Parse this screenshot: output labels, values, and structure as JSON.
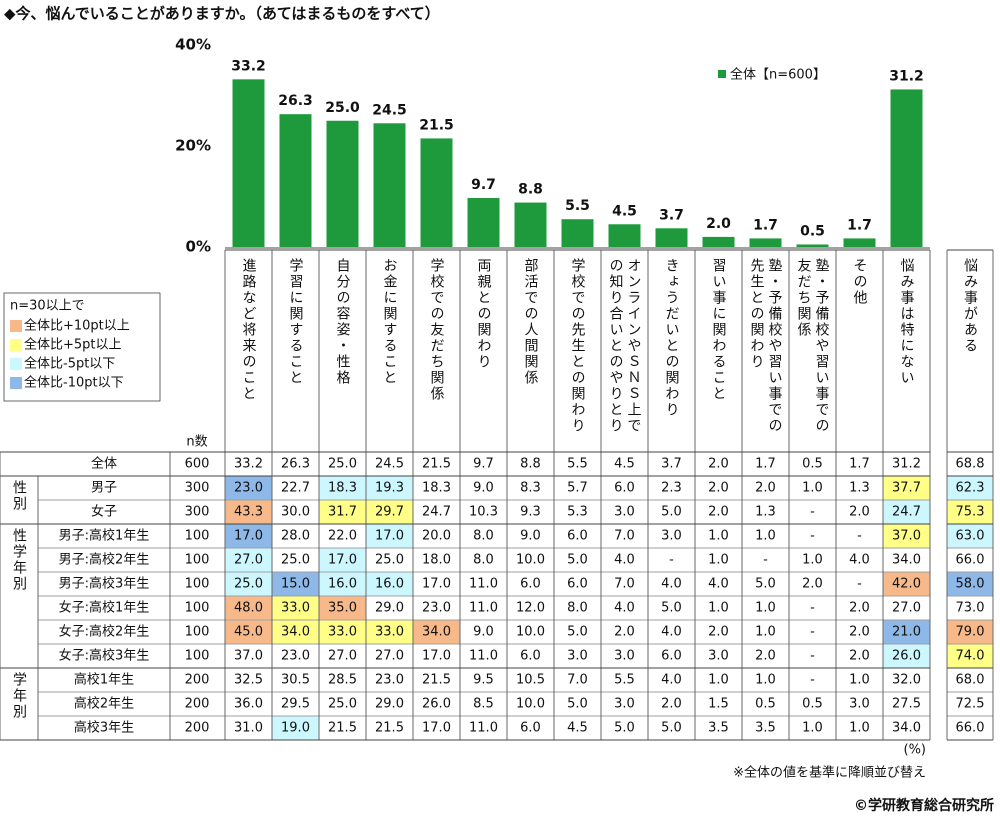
{
  "chart_data": {
    "type": "bar",
    "title": "◆今、悩んでいることがありますか。（あてはまるものをすべて）",
    "categories": [
      "進路など将来のこと",
      "学習に関すること",
      "自分の容姿・性格",
      "お金に関すること",
      "学校での友だち関係",
      "両親との関わり",
      "部活での人間関係",
      "学校での先生との関わり",
      "オンラインやＳＮＳ上での知り合いとのやりとり",
      "きょうだいとの関わり",
      "習い事に関わること",
      "塾・予備校や習い事での先生との関わり",
      "塾・予備校や習い事での友だち関係",
      "その他",
      "悩み事は特にない"
    ],
    "series": [
      {
        "name": "全体【n=600】",
        "color": "#1e9a3c",
        "values": [
          33.2,
          26.3,
          25.0,
          24.5,
          21.5,
          9.7,
          8.8,
          5.5,
          4.5,
          3.7,
          2.0,
          1.7,
          0.5,
          1.7,
          31.2
        ],
        "value_labels": [
          "33.2",
          "26.3",
          "25.0",
          "24.5",
          "21.5",
          "9.7",
          "8.8",
          "5.5",
          "4.5",
          "3.7",
          "2.0",
          "1.7",
          "0.5",
          "1.7",
          "31.2"
        ]
      }
    ],
    "ylim": [
      0,
      40
    ],
    "yticks": [
      {
        "value": 0,
        "label": "0%"
      },
      {
        "value": 20,
        "label": "20%"
      },
      {
        "value": 40,
        "label": "40%"
      }
    ],
    "legend": "upper right"
  },
  "table": {
    "n_header": "n数",
    "extra_header": "悩み事がある",
    "legend": {
      "title": "n=30以上で",
      "items": [
        {
          "label": "全体比+10pt以上",
          "color": "#f8b98a"
        },
        {
          "label": "全体比+5pt以上",
          "color": "#ffff88"
        },
        {
          "label": "全体比-5pt以下",
          "color": "#ccf7ff"
        },
        {
          "label": "全体比-10pt以下",
          "color": "#8db8e8"
        }
      ]
    },
    "total": {
      "label": "全体",
      "n": 600,
      "cells": [
        "33.2",
        "26.3",
        "25.0",
        "24.5",
        "21.5",
        "9.7",
        "8.8",
        "5.5",
        "4.5",
        "3.7",
        "2.0",
        "1.7",
        "0.5",
        "1.7",
        "31.2",
        "68.8"
      ]
    },
    "groups": [
      {
        "label": "性別",
        "rows": [
          {
            "label": "男子",
            "n": 300,
            "cells": [
              "23.0",
              "22.7",
              "18.3",
              "19.3",
              "18.3",
              "9.0",
              "8.3",
              "5.7",
              "6.0",
              "2.3",
              "2.0",
              "2.0",
              "1.0",
              "1.3",
              "37.7",
              "62.3"
            ],
            "fills": [
              "#8db8e8",
              null,
              "#ccf7ff",
              "#ccf7ff",
              null,
              null,
              null,
              null,
              null,
              null,
              null,
              null,
              null,
              null,
              "#ffff88",
              "#ccf7ff"
            ]
          },
          {
            "label": "女子",
            "n": 300,
            "cells": [
              "43.3",
              "30.0",
              "31.7",
              "29.7",
              "24.7",
              "10.3",
              "9.3",
              "5.3",
              "3.0",
              "5.0",
              "2.0",
              "1.3",
              "-",
              "2.0",
              "24.7",
              "75.3"
            ],
            "fills": [
              "#f8b98a",
              null,
              "#ffff88",
              "#ffff88",
              null,
              null,
              null,
              null,
              null,
              null,
              null,
              null,
              null,
              null,
              "#ccf7ff",
              "#ffff88"
            ]
          }
        ]
      },
      {
        "label": "性学年別",
        "rows": [
          {
            "label": "男子:高校1年生",
            "n": 100,
            "cells": [
              "17.0",
              "28.0",
              "22.0",
              "17.0",
              "20.0",
              "8.0",
              "9.0",
              "6.0",
              "7.0",
              "3.0",
              "1.0",
              "1.0",
              "-",
              "-",
              "37.0",
              "63.0"
            ],
            "fills": [
              "#8db8e8",
              null,
              null,
              "#ccf7ff",
              null,
              null,
              null,
              null,
              null,
              null,
              null,
              null,
              null,
              null,
              "#ffff88",
              "#ccf7ff"
            ]
          },
          {
            "label": "男子:高校2年生",
            "n": 100,
            "cells": [
              "27.0",
              "25.0",
              "17.0",
              "25.0",
              "18.0",
              "8.0",
              "10.0",
              "5.0",
              "4.0",
              "-",
              "1.0",
              "-",
              "1.0",
              "4.0",
              "34.0",
              "66.0"
            ],
            "fills": [
              "#ccf7ff",
              null,
              "#ccf7ff",
              null,
              null,
              null,
              null,
              null,
              null,
              null,
              null,
              null,
              null,
              null,
              null,
              null
            ]
          },
          {
            "label": "男子:高校3年生",
            "n": 100,
            "cells": [
              "25.0",
              "15.0",
              "16.0",
              "16.0",
              "17.0",
              "11.0",
              "6.0",
              "6.0",
              "7.0",
              "4.0",
              "4.0",
              "5.0",
              "2.0",
              "-",
              "42.0",
              "58.0"
            ],
            "fills": [
              "#ccf7ff",
              "#8db8e8",
              "#ccf7ff",
              "#ccf7ff",
              null,
              null,
              null,
              null,
              null,
              null,
              null,
              null,
              null,
              null,
              "#f8b98a",
              "#8db8e8"
            ]
          },
          {
            "label": "女子:高校1年生",
            "n": 100,
            "cells": [
              "48.0",
              "33.0",
              "35.0",
              "29.0",
              "23.0",
              "11.0",
              "12.0",
              "8.0",
              "4.0",
              "5.0",
              "1.0",
              "1.0",
              "-",
              "2.0",
              "27.0",
              "73.0"
            ],
            "fills": [
              "#f8b98a",
              "#ffff88",
              "#f8b98a",
              null,
              null,
              null,
              null,
              null,
              null,
              null,
              null,
              null,
              null,
              null,
              null,
              null
            ]
          },
          {
            "label": "女子:高校2年生",
            "n": 100,
            "cells": [
              "45.0",
              "34.0",
              "33.0",
              "33.0",
              "34.0",
              "9.0",
              "10.0",
              "5.0",
              "2.0",
              "4.0",
              "2.0",
              "1.0",
              "-",
              "2.0",
              "21.0",
              "79.0"
            ],
            "fills": [
              "#f8b98a",
              "#ffff88",
              "#ffff88",
              "#ffff88",
              "#f8b98a",
              null,
              null,
              null,
              null,
              null,
              null,
              null,
              null,
              null,
              "#8db8e8",
              "#f8b98a"
            ]
          },
          {
            "label": "女子:高校3年生",
            "n": 100,
            "cells": [
              "37.0",
              "23.0",
              "27.0",
              "27.0",
              "17.0",
              "11.0",
              "6.0",
              "3.0",
              "3.0",
              "6.0",
              "3.0",
              "2.0",
              "-",
              "2.0",
              "26.0",
              "74.0"
            ],
            "fills": [
              null,
              null,
              null,
              null,
              null,
              null,
              null,
              null,
              null,
              null,
              null,
              null,
              null,
              null,
              "#ccf7ff",
              "#ffff88"
            ]
          }
        ]
      },
      {
        "label": "学年別",
        "rows": [
          {
            "label": "高校1年生",
            "n": 200,
            "cells": [
              "32.5",
              "30.5",
              "28.5",
              "23.0",
              "21.5",
              "9.5",
              "10.5",
              "7.0",
              "5.5",
              "4.0",
              "1.0",
              "1.0",
              "-",
              "1.0",
              "32.0",
              "68.0"
            ]
          },
          {
            "label": "高校2年生",
            "n": 200,
            "cells": [
              "36.0",
              "29.5",
              "25.0",
              "29.0",
              "26.0",
              "8.5",
              "10.0",
              "5.0",
              "3.0",
              "2.0",
              "1.5",
              "0.5",
              "0.5",
              "3.0",
              "27.5",
              "72.5"
            ]
          },
          {
            "label": "高校3年生",
            "n": 200,
            "cells": [
              "31.0",
              "19.0",
              "21.5",
              "21.5",
              "17.0",
              "11.0",
              "6.0",
              "4.5",
              "5.0",
              "5.0",
              "3.5",
              "3.5",
              "1.0",
              "1.0",
              "34.0",
              "66.0"
            ],
            "fills": [
              null,
              "#ccf7ff",
              null,
              null,
              null,
              null,
              null,
              null,
              null,
              null,
              null,
              null,
              null,
              null,
              null,
              null
            ]
          }
        ]
      }
    ],
    "unit": "(%)"
  },
  "note": "※全体の値を基準に降順並び替え",
  "credit": "©学研教育総合研究所"
}
